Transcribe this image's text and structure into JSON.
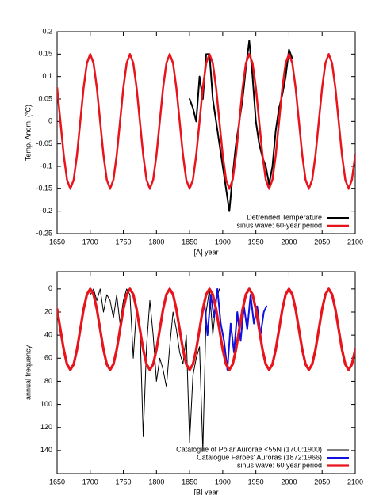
{
  "chart_data": [
    {
      "type": "line",
      "xlabel": "[A]   year",
      "ylabel": "Temp. Anom. (°C)",
      "xlim": [
        1650,
        2100
      ],
      "xticks": [
        1650,
        1700,
        1750,
        1800,
        1850,
        1900,
        1950,
        2000,
        2050,
        2100
      ],
      "ylim": [
        -0.25,
        0.2
      ],
      "yticks": [
        -0.25,
        -0.2,
        -0.15,
        -0.1,
        -0.05,
        0,
        0.05,
        0.1,
        0.15,
        0.2
      ],
      "grid": false,
      "legend": "bottom-right",
      "series": [
        {
          "name": "Detrended Temperature",
          "color": "#000000",
          "x": [
            1850,
            1855,
            1860,
            1865,
            1870,
            1875,
            1880,
            1885,
            1890,
            1895,
            1900,
            1905,
            1910,
            1915,
            1920,
            1925,
            1930,
            1935,
            1940,
            1945,
            1950,
            1955,
            1960,
            1965,
            1970,
            1975,
            1980,
            1985,
            1990,
            1995,
            2000,
            2005
          ],
          "values": [
            0.05,
            0.03,
            0.0,
            0.1,
            0.05,
            0.15,
            0.15,
            0.05,
            0.0,
            -0.05,
            -0.1,
            -0.15,
            -0.2,
            -0.12,
            -0.05,
            0.0,
            0.05,
            0.12,
            0.18,
            0.1,
            0.0,
            -0.05,
            -0.08,
            -0.1,
            -0.14,
            -0.1,
            -0.02,
            0.03,
            0.06,
            0.1,
            0.16,
            0.14
          ]
        },
        {
          "name": "sinus wave: 60-year period",
          "color": "#e8141c",
          "x": [
            1650,
            1655,
            1660,
            1665,
            1670,
            1675,
            1680,
            1685,
            1690,
            1695,
            1700,
            1705,
            1710,
            1715,
            1720,
            1725,
            1730,
            1735,
            1740,
            1745,
            1750,
            1755,
            1760,
            1765,
            1770,
            1775,
            1780,
            1785,
            1790,
            1795,
            1800,
            1805,
            1810,
            1815,
            1820,
            1825,
            1830,
            1835,
            1840,
            1845,
            1850,
            1855,
            1860,
            1865,
            1870,
            1875,
            1880,
            1885,
            1890,
            1895,
            1900,
            1905,
            1910,
            1915,
            1920,
            1925,
            1930,
            1935,
            1940,
            1945,
            1950,
            1955,
            1960,
            1965,
            1970,
            1975,
            1980,
            1985,
            1990,
            1995,
            2000,
            2005,
            2010,
            2015,
            2020,
            2025,
            2030,
            2035,
            2040,
            2045,
            2050,
            2055,
            2060,
            2065,
            2070,
            2075,
            2080,
            2085,
            2090,
            2095,
            2100
          ],
          "values": [
            0.075,
            0,
            -0.075,
            -0.13,
            -0.15,
            -0.13,
            -0.075,
            0,
            0.075,
            0.13,
            0.15,
            0.13,
            0.075,
            0,
            -0.075,
            -0.13,
            -0.15,
            -0.13,
            -0.075,
            0,
            0.075,
            0.13,
            0.15,
            0.13,
            0.075,
            0,
            -0.075,
            -0.13,
            -0.15,
            -0.13,
            -0.075,
            0,
            0.075,
            0.13,
            0.15,
            0.13,
            0.075,
            0,
            -0.075,
            -0.13,
            -0.15,
            -0.13,
            -0.075,
            0,
            0.075,
            0.13,
            0.15,
            0.13,
            0.075,
            0,
            -0.075,
            -0.13,
            -0.15,
            -0.13,
            -0.075,
            0,
            0.075,
            0.13,
            0.15,
            0.13,
            0.075,
            0,
            -0.075,
            -0.13,
            -0.15,
            -0.13,
            -0.075,
            0,
            0.075,
            0.13,
            0.15,
            0.13,
            0.075,
            0,
            -0.075,
            -0.13,
            -0.15,
            -0.13,
            -0.075,
            0,
            0.075,
            0.13,
            0.15,
            0.13,
            0.075,
            0,
            -0.075,
            -0.13,
            -0.15,
            -0.13,
            -0.075
          ]
        }
      ]
    },
    {
      "type": "line",
      "xlabel": "[B]   year",
      "ylabel": "annual frequency",
      "xlim": [
        1650,
        2100
      ],
      "xticks": [
        1650,
        1700,
        1750,
        1800,
        1850,
        1900,
        1950,
        2000,
        2050,
        2100
      ],
      "ylim": [
        160,
        -15
      ],
      "yticks": [
        0,
        20,
        40,
        60,
        80,
        100,
        120,
        140
      ],
      "grid": false,
      "legend": "bottom-right",
      "series": [
        {
          "name": "Catalogue of Polar Aurorae <55N (1700:1900)",
          "color": "#000000",
          "x": [
            1700,
            1705,
            1710,
            1715,
            1720,
            1725,
            1730,
            1735,
            1740,
            1745,
            1750,
            1755,
            1760,
            1765,
            1770,
            1775,
            1780,
            1785,
            1790,
            1795,
            1800,
            1805,
            1810,
            1815,
            1820,
            1825,
            1830,
            1835,
            1840,
            1845,
            1850,
            1855,
            1860,
            1865,
            1870,
            1875,
            1880,
            1885,
            1890,
            1895
          ],
          "values": [
            5,
            0,
            10,
            0,
            20,
            5,
            10,
            25,
            5,
            30,
            10,
            0,
            5,
            60,
            15,
            30,
            128,
            50,
            10,
            40,
            80,
            60,
            70,
            85,
            50,
            20,
            35,
            55,
            65,
            40,
            133,
            75,
            60,
            50,
            140,
            20,
            0,
            40,
            10,
            0
          ]
        },
        {
          "name": "Catalogue Faroes' Auroras (1872:1966)",
          "color": "#1010e0",
          "x": [
            1872,
            1877,
            1882,
            1887,
            1892,
            1897,
            1902,
            1907,
            1912,
            1917,
            1922,
            1927,
            1932,
            1937,
            1942,
            1947,
            1952,
            1957,
            1962,
            1966
          ],
          "values": [
            10,
            40,
            5,
            25,
            0,
            30,
            45,
            70,
            30,
            55,
            20,
            45,
            15,
            35,
            5,
            30,
            15,
            40,
            20,
            15
          ]
        },
        {
          "name": "sinus wave: 60 year period",
          "color": "#e8141c",
          "x": [
            1650,
            1655,
            1660,
            1665,
            1670,
            1675,
            1680,
            1685,
            1690,
            1695,
            1700,
            1705,
            1710,
            1715,
            1720,
            1725,
            1730,
            1735,
            1740,
            1745,
            1750,
            1755,
            1760,
            1765,
            1770,
            1775,
            1780,
            1785,
            1790,
            1795,
            1800,
            1805,
            1810,
            1815,
            1820,
            1825,
            1830,
            1835,
            1840,
            1845,
            1850,
            1855,
            1860,
            1865,
            1870,
            1875,
            1880,
            1885,
            1890,
            1895,
            1900,
            1905,
            1910,
            1915,
            1920,
            1925,
            1930,
            1935,
            1940,
            1945,
            1950,
            1955,
            1960,
            1965,
            1970,
            1975,
            1980,
            1985,
            1990,
            1995,
            2000,
            2005,
            2010,
            2015,
            2020,
            2025,
            2030,
            2035,
            2040,
            2045,
            2050,
            2055,
            2060,
            2065,
            2070,
            2075,
            2080,
            2085,
            2090,
            2095,
            2100
          ],
          "values": [
            17.5,
            35,
            52.5,
            65.3,
            70,
            65.3,
            52.5,
            35,
            17.5,
            4.7,
            0,
            4.7,
            17.5,
            35,
            52.5,
            65.3,
            70,
            65.3,
            52.5,
            35,
            17.5,
            4.7,
            0,
            4.7,
            17.5,
            35,
            52.5,
            65.3,
            70,
            65.3,
            52.5,
            35,
            17.5,
            4.7,
            0,
            4.7,
            17.5,
            35,
            52.5,
            65.3,
            70,
            65.3,
            52.5,
            35,
            17.5,
            4.7,
            0,
            4.7,
            17.5,
            35,
            52.5,
            65.3,
            70,
            65.3,
            52.5,
            35,
            17.5,
            4.7,
            0,
            4.7,
            17.5,
            35,
            52.5,
            65.3,
            70,
            65.3,
            52.5,
            35,
            17.5,
            4.7,
            0,
            4.7,
            17.5,
            35,
            52.5,
            65.3,
            70,
            65.3,
            52.5,
            35,
            17.5,
            4.7,
            0,
            4.7,
            17.5,
            35,
            52.5,
            65.3,
            70,
            65.3,
            52.5
          ]
        }
      ]
    }
  ]
}
